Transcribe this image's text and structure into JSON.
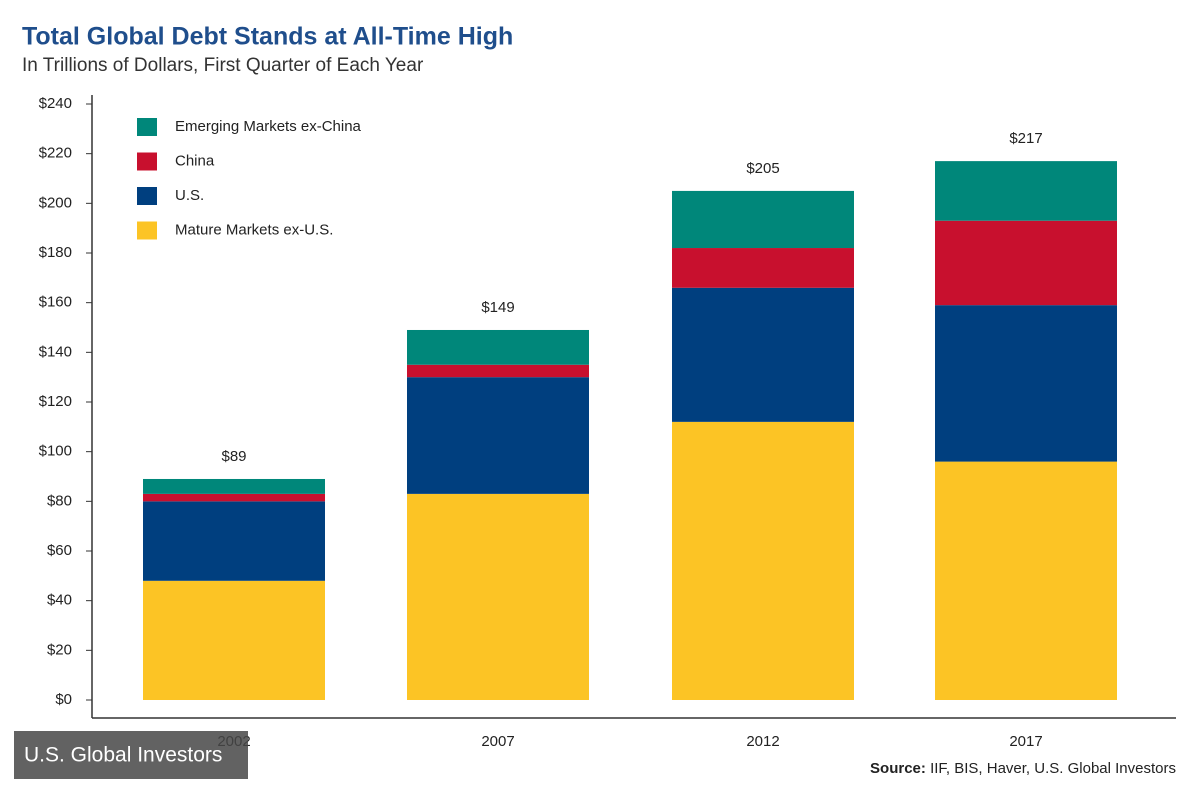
{
  "chart_data": {
    "type": "stacked-bar",
    "title": "Total Global Debt Stands at All-Time High",
    "subtitle": "In Trillions of Dollars, First Quarter of Each Year",
    "categories": [
      "2002",
      "2007",
      "2012",
      "2017"
    ],
    "series": [
      {
        "name": "Mature Markets ex-U.S.",
        "color": "#fcc425",
        "values": [
          48,
          83,
          112,
          96
        ]
      },
      {
        "name": "U.S.",
        "color": "#003f7f",
        "values": [
          32,
          47,
          54,
          63
        ]
      },
      {
        "name": "China",
        "color": "#c8102e",
        "values": [
          3,
          5,
          16,
          34
        ]
      },
      {
        "name": "Emerging Markets ex-China",
        "color": "#00877a",
        "values": [
          6,
          14,
          23,
          24
        ]
      }
    ],
    "total_values": [
      89,
      149,
      205,
      217
    ],
    "total_labels": [
      "$89",
      "$149",
      "$205",
      "$217"
    ],
    "ylim": [
      0,
      240
    ],
    "yticks": [
      {
        "value": 0,
        "label": "$0"
      },
      {
        "value": 20,
        "label": "$20"
      },
      {
        "value": 40,
        "label": "$40"
      },
      {
        "value": 60,
        "label": "$60"
      },
      {
        "value": 80,
        "label": "$80"
      },
      {
        "value": 100,
        "label": "$100"
      },
      {
        "value": 120,
        "label": "$120"
      },
      {
        "value": 140,
        "label": "$140"
      },
      {
        "value": 160,
        "label": "$160"
      },
      {
        "value": 180,
        "label": "$180"
      },
      {
        "value": 200,
        "label": "$200"
      },
      {
        "value": 220,
        "label": "$220"
      },
      {
        "value": 240,
        "label": "$240"
      }
    ],
    "legend": "upper left",
    "source_label": "Source:",
    "source": "IIF, BIS, Haver, U.S. Global Investors",
    "watermark": "U.S. Global Investors"
  }
}
